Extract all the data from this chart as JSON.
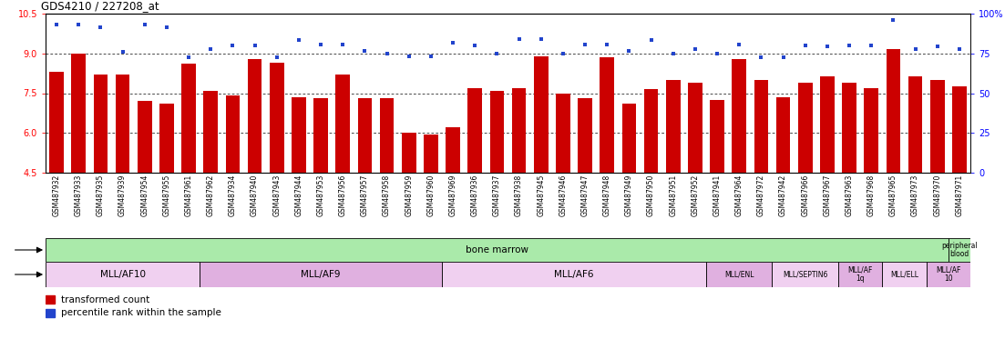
{
  "title": "GDS4210 / 227208_at",
  "samples": [
    "GSM487932",
    "GSM487933",
    "GSM487935",
    "GSM487939",
    "GSM487954",
    "GSM487955",
    "GSM487961",
    "GSM487962",
    "GSM487934",
    "GSM487940",
    "GSM487943",
    "GSM487944",
    "GSM487953",
    "GSM487956",
    "GSM487957",
    "GSM487958",
    "GSM487959",
    "GSM487960",
    "GSM487969",
    "GSM487936",
    "GSM487937",
    "GSM487938",
    "GSM487945",
    "GSM487946",
    "GSM487947",
    "GSM487948",
    "GSM487949",
    "GSM487950",
    "GSM487951",
    "GSM487952",
    "GSM487941",
    "GSM487964",
    "GSM487972",
    "GSM487942",
    "GSM487966",
    "GSM487967",
    "GSM487963",
    "GSM487968",
    "GSM487965",
    "GSM487973",
    "GSM487970",
    "GSM487971"
  ],
  "bar_values": [
    8.3,
    9.0,
    8.2,
    8.2,
    7.2,
    7.1,
    8.6,
    7.6,
    7.4,
    8.8,
    8.65,
    7.35,
    7.3,
    8.2,
    7.3,
    7.3,
    6.0,
    5.95,
    6.2,
    7.7,
    7.6,
    7.7,
    8.9,
    7.5,
    7.3,
    8.85,
    7.1,
    7.65,
    8.0,
    7.9,
    7.25,
    8.8,
    8.0,
    7.35,
    7.9,
    8.15,
    7.9,
    7.7,
    9.15,
    8.15,
    8.0,
    7.75
  ],
  "blue_values": [
    10.1,
    10.1,
    10.0,
    9.05,
    10.1,
    10.0,
    8.85,
    9.15,
    9.3,
    9.3,
    8.85,
    9.5,
    9.35,
    9.35,
    9.1,
    9.0,
    8.9,
    8.88,
    9.4,
    9.3,
    9.0,
    9.55,
    9.55,
    9.0,
    9.35,
    9.35,
    9.1,
    9.5,
    9.0,
    9.15,
    9.0,
    9.35,
    8.85,
    8.85,
    9.3,
    9.25,
    9.3,
    9.3,
    10.25,
    9.15,
    9.25,
    9.15
  ],
  "ylim": [
    4.5,
    10.5
  ],
  "yticks": [
    4.5,
    6.0,
    7.5,
    9.0,
    10.5
  ],
  "y2ticks_vals": [
    0,
    25,
    50,
    75,
    100
  ],
  "y2ticks_labels": [
    "0",
    "25",
    "50",
    "75",
    "100%"
  ],
  "bar_color": "#cc0000",
  "dot_color": "#2244cc",
  "n_bm": 41,
  "n_total": 42,
  "tissue_bm_color": "#aaeaaa",
  "tissue_pb_color": "#aaeaaa",
  "geno_colors": [
    "#f0d0f0",
    "#e0b0e0",
    "#f0d0f0",
    "#e0b0e0",
    "#f0d0f0",
    "#e0b0e0",
    "#f0d0f0",
    "#e0b0e0"
  ],
  "geno_groups": [
    {
      "label": "MLL/AF10",
      "start": 0,
      "end": 7
    },
    {
      "label": "MLL/AF9",
      "start": 7,
      "end": 18
    },
    {
      "label": "MLL/AF6",
      "start": 18,
      "end": 30
    },
    {
      "label": "MLL/ENL",
      "start": 30,
      "end": 33
    },
    {
      "label": "MLL/SEPTIN6",
      "start": 33,
      "end": 36
    },
    {
      "label": "MLL/AF\n1q",
      "start": 36,
      "end": 38
    },
    {
      "label": "MLL/ELL",
      "start": 38,
      "end": 40
    },
    {
      "label": "MLL/AF\n10",
      "start": 40,
      "end": 42
    }
  ],
  "legend_red": "transformed count",
  "legend_blue": "percentile rank within the sample"
}
